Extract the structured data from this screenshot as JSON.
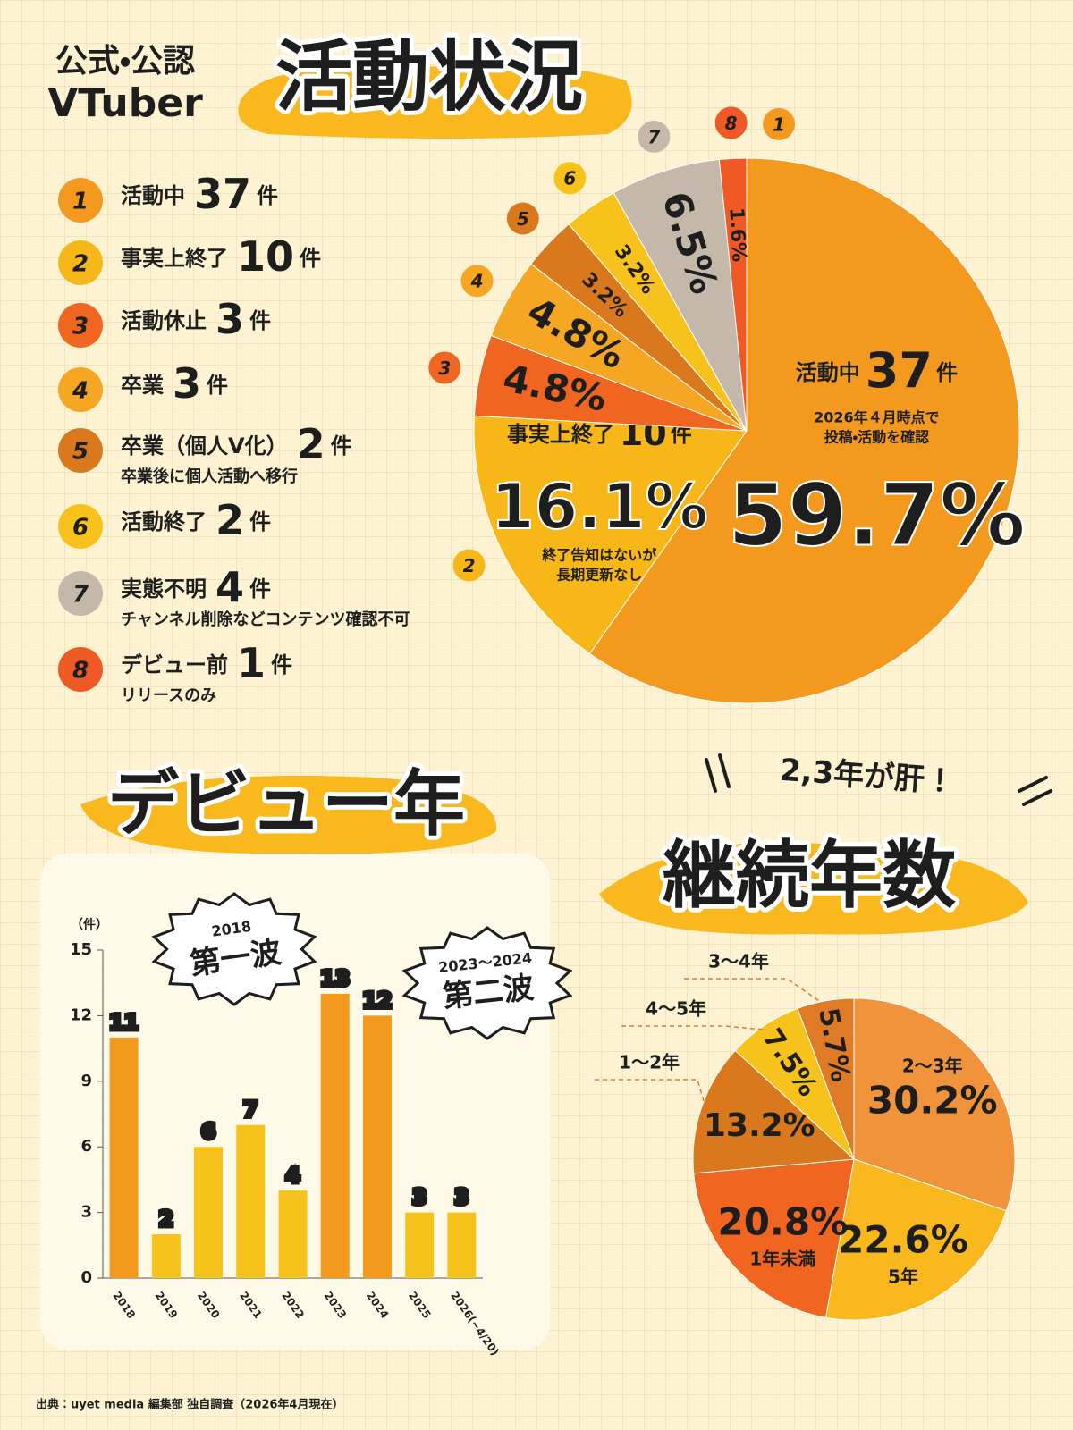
{
  "header": {
    "kicker": [
      "公式・公認",
      "VTuber"
    ],
    "title": "活動状況"
  },
  "chart_data": [
    {
      "type": "pie",
      "categories": [
        "1",
        "2",
        "3",
        "4",
        "5",
        "6",
        "7",
        "8"
      ],
      "values": [
        59.7,
        16.1,
        4.8,
        4.8,
        3.2,
        3.2,
        6.5,
        1.6
      ],
      "value_labels": [
        "59.7%",
        "16.1%",
        "4.8%",
        "4.8%",
        "3.2%",
        "3.2%",
        "6.5%",
        "1.6%"
      ],
      "colors": [
        "#f39a1e",
        "#f7b718",
        "#f0651f",
        "#f5a623",
        "#d9781c",
        "#f8c21d",
        "#c4b8aa",
        "#ef5a24"
      ],
      "unit": "件",
      "legend": [
        {
          "name": "活動中",
          "count": 37
        },
        {
          "name": "事実上終了",
          "count": 10
        },
        {
          "name": "活動休止",
          "count": 3
        },
        {
          "name": "卒業",
          "count": 3
        },
        {
          "name": "卒業（個人V化）",
          "count": 2,
          "note": "卒業後に個人活動へ移行"
        },
        {
          "name": "活動終了",
          "count": 2
        },
        {
          "name": "実態不明",
          "count": 4,
          "note": "チャンネル削除などコンテンツ確認不可"
        },
        {
          "name": "デビュー前",
          "count": 1,
          "note": "リリースのみ"
        }
      ],
      "slice_notes": [
        [
          "2026年４月時点で",
          "投稿・活動を確認"
        ],
        [
          "終了告知はないが",
          "長期更新なし"
        ],
        null,
        null,
        null,
        null,
        null,
        null
      ]
    },
    {
      "type": "bar",
      "title": "デビュー年",
      "y_label": "（件）",
      "categories": [
        "2018",
        "2019",
        "2020",
        "2021",
        "2022",
        "2023",
        "2024",
        "2025",
        "2026(~4/20)"
      ],
      "values": [
        11,
        2,
        6,
        7,
        4,
        13,
        12,
        3,
        3
      ],
      "colors": [
        "#f39a1e",
        "#f8c21d",
        "#f8c21d",
        "#f8c21d",
        "#f8c21d",
        "#f39a1e",
        "#f39a1e",
        "#f8c21d",
        "#f8c21d"
      ],
      "ylim": [
        0,
        15
      ],
      "yticks": [
        0,
        3,
        6,
        9,
        12,
        15
      ],
      "waves": [
        {
          "years": "2018",
          "label": "第一波"
        },
        {
          "years": "2023～2024",
          "label": "第二波"
        }
      ]
    },
    {
      "type": "pie",
      "title": "継続年数",
      "subtitle": "2,3年が肝！",
      "categories": [
        "2～3年",
        "5年",
        "1年未満",
        "1～2年",
        "4～5年",
        "3～4年"
      ],
      "values": [
        30.2,
        22.6,
        20.8,
        13.2,
        7.5,
        5.7
      ],
      "value_labels": [
        "30.2%",
        "22.6%",
        "20.8%",
        "13.2%",
        "7.5%",
        "5.7%"
      ],
      "colors": [
        "#f0933a",
        "#f8b81e",
        "#f0651f",
        "#d9781c",
        "#f8c21d",
        "#e07a25"
      ]
    }
  ],
  "source": "出典：uyet media 編集部 独自調査（2026年4月現在）"
}
